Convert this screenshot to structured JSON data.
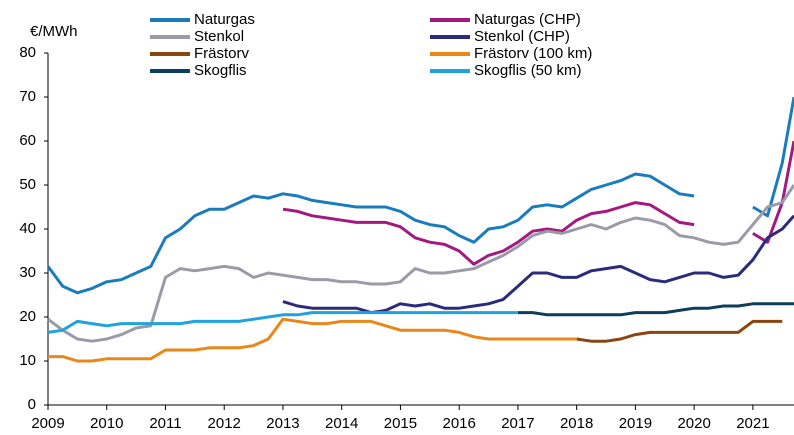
{
  "chart_data": {
    "type": "line",
    "y_label": "€/MWh",
    "legend": "top",
    "x": [
      2009,
      2009.25,
      2009.5,
      2009.75,
      2010,
      2010.25,
      2010.5,
      2010.75,
      2011,
      2011.25,
      2011.5,
      2011.75,
      2012,
      2012.25,
      2012.5,
      2012.75,
      2013,
      2013.25,
      2013.5,
      2013.75,
      2014,
      2014.25,
      2014.5,
      2014.75,
      2015,
      2015.25,
      2015.5,
      2015.75,
      2016,
      2016.25,
      2016.5,
      2016.75,
      2017,
      2017.25,
      2017.5,
      2017.75,
      2018,
      2018.25,
      2018.5,
      2018.75,
      2019,
      2019.25,
      2019.5,
      2019.75,
      2020,
      2020.25,
      2020.5,
      2020.75,
      2021,
      2021.25,
      2021.5,
      2021.7
    ],
    "xlim": [
      2009,
      2021.7
    ],
    "xticks": [
      2009,
      2010,
      2011,
      2012,
      2013,
      2014,
      2015,
      2016,
      2017,
      2018,
      2019,
      2020,
      2021
    ],
    "ylim": [
      0,
      80
    ],
    "yticks": [
      0,
      10,
      20,
      30,
      40,
      50,
      60,
      70,
      80
    ],
    "series": [
      {
        "name": "Naturgas",
        "color": "#1b7cbd",
        "values": [
          31.5,
          27,
          25.5,
          26.5,
          28,
          28.5,
          30,
          31.5,
          38,
          40,
          43,
          44.5,
          44.5,
          46,
          47.5,
          47,
          48,
          47.5,
          46.5,
          46,
          45.5,
          45,
          45,
          45,
          44,
          42,
          41,
          40.5,
          38.5,
          37,
          40,
          40.5,
          42,
          45,
          45.5,
          45,
          47,
          49,
          50,
          51,
          52.5,
          52,
          50,
          48,
          47.5,
          null,
          null,
          null,
          45,
          43,
          55,
          70
        ]
      },
      {
        "name": "Naturgas (CHP)",
        "color": "#a3197f",
        "values": [
          null,
          null,
          null,
          null,
          null,
          null,
          null,
          null,
          null,
          null,
          null,
          null,
          null,
          null,
          null,
          null,
          44.5,
          44,
          43,
          42.5,
          42,
          41.5,
          41.5,
          41.5,
          40.5,
          38,
          37,
          36.5,
          35,
          32,
          34,
          35,
          37,
          39.5,
          40,
          39.5,
          42,
          43.5,
          44,
          45,
          46,
          45.5,
          43.5,
          41.5,
          41,
          null,
          null,
          null,
          39,
          37,
          46,
          60
        ]
      },
      {
        "name": "Stenkol",
        "color": "#9b9ba8",
        "values": [
          19.5,
          17,
          15,
          14.5,
          15,
          16,
          17.5,
          18,
          29,
          31,
          30.5,
          31,
          31.5,
          31,
          29,
          30,
          29.5,
          29,
          28.5,
          28.5,
          28,
          28,
          27.5,
          27.5,
          28,
          31,
          30,
          30,
          30.5,
          31,
          32.5,
          34,
          36,
          38.5,
          39.5,
          39,
          40,
          41,
          40,
          41.5,
          42.5,
          42,
          41,
          38.5,
          38,
          37,
          36.5,
          37,
          41,
          45,
          46,
          50
        ]
      },
      {
        "name": "Stenkol (CHP)",
        "color": "#2b2b7d",
        "values": [
          null,
          null,
          null,
          null,
          null,
          null,
          null,
          null,
          null,
          null,
          null,
          null,
          null,
          null,
          null,
          null,
          23.5,
          22.5,
          22,
          22,
          22,
          22,
          21,
          21.5,
          23,
          22.5,
          23,
          22,
          22,
          22.5,
          23,
          24,
          27,
          30,
          30,
          29,
          29,
          30.5,
          31,
          31.5,
          30,
          28.5,
          28,
          29,
          30,
          30,
          29,
          29.5,
          33,
          38,
          40,
          43
        ]
      },
      {
        "name": "Frästorv",
        "color": "#8a4512",
        "values": [
          null,
          null,
          null,
          null,
          null,
          null,
          null,
          null,
          null,
          null,
          null,
          null,
          null,
          null,
          null,
          null,
          null,
          null,
          null,
          null,
          null,
          null,
          null,
          null,
          null,
          null,
          null,
          null,
          null,
          null,
          null,
          null,
          null,
          null,
          null,
          null,
          15,
          14.5,
          14.5,
          15,
          16,
          16.5,
          16.5,
          16.5,
          16.5,
          16.5,
          16.5,
          16.5,
          19,
          19,
          19,
          null
        ]
      },
      {
        "name": "Frästorv (100 km)",
        "color": "#e8871a",
        "values": [
          11,
          11,
          10,
          10,
          10.5,
          10.5,
          10.5,
          10.5,
          12.5,
          12.5,
          12.5,
          13,
          13,
          13,
          13.5,
          15,
          19.5,
          19,
          18.5,
          18.5,
          19,
          19,
          19,
          18,
          17,
          17,
          17,
          17,
          16.5,
          15.5,
          15,
          15,
          15,
          15,
          15,
          15,
          15,
          null,
          null,
          null,
          null,
          null,
          null,
          null,
          null,
          null,
          null,
          null,
          null,
          null,
          null,
          null
        ]
      },
      {
        "name": "Skogflis",
        "color": "#0d3f5c",
        "values": [
          null,
          null,
          null,
          null,
          null,
          null,
          null,
          null,
          null,
          null,
          null,
          null,
          null,
          null,
          null,
          null,
          null,
          null,
          null,
          null,
          null,
          null,
          null,
          null,
          null,
          null,
          null,
          null,
          null,
          null,
          null,
          null,
          21,
          21,
          20.5,
          20.5,
          20.5,
          20.5,
          20.5,
          20.5,
          21,
          21,
          21,
          21.5,
          22,
          22,
          22.5,
          22.5,
          23,
          23,
          23,
          23
        ]
      },
      {
        "name": "Skogflis (50 km)",
        "color": "#1fa2dd",
        "values": [
          16.5,
          17,
          19,
          18.5,
          18,
          18.5,
          18.5,
          18.5,
          18.5,
          18.5,
          19,
          19,
          19,
          19,
          19.5,
          20,
          20.5,
          20.5,
          21,
          21,
          21,
          21,
          21,
          21,
          21,
          21,
          21,
          21,
          21,
          21,
          21,
          21,
          21,
          null,
          null,
          null,
          null,
          null,
          null,
          null,
          null,
          null,
          null,
          null,
          null,
          null,
          null,
          null,
          null,
          null,
          null,
          null
        ]
      }
    ]
  }
}
